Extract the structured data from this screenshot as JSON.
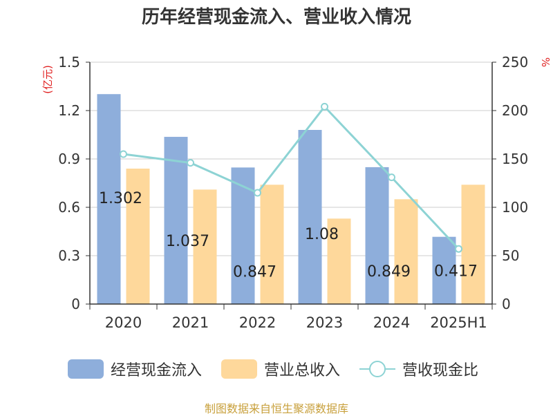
{
  "title": "历年经营现金流入、营业收入情况",
  "left_unit": "(亿元)",
  "right_unit": "%",
  "source": "制图数据来自恒生聚源数据库",
  "colors": {
    "cash": "#8eaedb",
    "revenue": "#fed89b",
    "ratio": "#8dd3d4",
    "unit": "#e02020"
  },
  "chart_data": {
    "type": "bar",
    "categories": [
      "2020",
      "2021",
      "2022",
      "2023",
      "2024",
      "2025H1"
    ],
    "series": [
      {
        "name": "经营现金流入",
        "type": "bar",
        "axis": "left",
        "values": [
          1.302,
          1.037,
          0.847,
          1.08,
          0.849,
          0.417
        ],
        "labels": [
          "1.302",
          "1.037",
          "0.847",
          "1.08",
          "0.849",
          "0.417"
        ]
      },
      {
        "name": "营业总收入",
        "type": "bar",
        "axis": "left",
        "values": [
          0.84,
          0.71,
          0.74,
          0.53,
          0.65,
          0.74
        ]
      },
      {
        "name": "营收现金比",
        "type": "line",
        "axis": "right",
        "values": [
          155,
          146,
          115,
          204,
          131,
          57
        ]
      }
    ],
    "left_axis": {
      "ylim": [
        0,
        1.5
      ],
      "ticks": [
        "0",
        "0.3",
        "0.6",
        "0.9",
        "1.2",
        "1.5"
      ]
    },
    "right_axis": {
      "ylim": [
        0,
        250
      ],
      "ticks": [
        "0",
        "50",
        "100",
        "150",
        "200",
        "250"
      ]
    },
    "grid": true,
    "legend": "bottom"
  }
}
